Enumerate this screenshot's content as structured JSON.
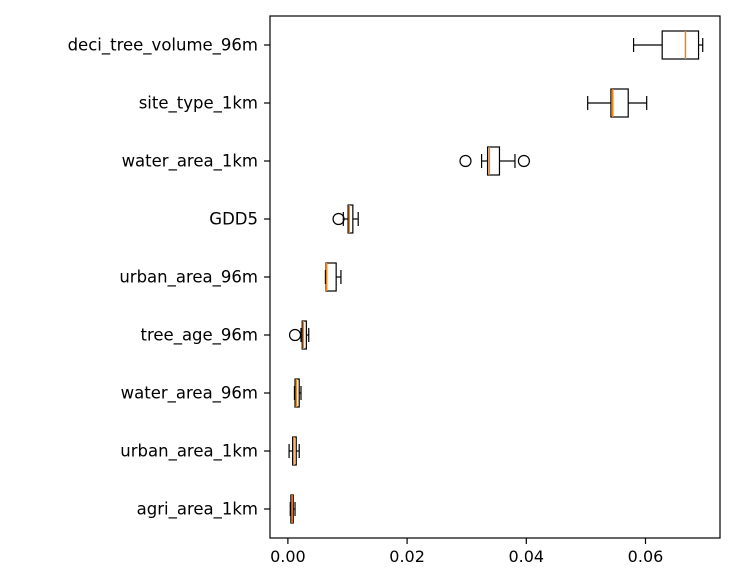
{
  "chart_data": {
    "type": "boxplot",
    "orientation": "horizontal",
    "title": "",
    "xlabel": "",
    "ylabel": "",
    "xlim": [
      -0.003,
      0.0725
    ],
    "x_ticks": [
      0.0,
      0.02,
      0.04,
      0.06
    ],
    "x_tick_labels": [
      "0.00",
      "0.02",
      "0.04",
      "0.06"
    ],
    "grid": false,
    "box_color": "#000000",
    "median_color": "#ff7f0e",
    "categories": [
      "deci_tree_volume_96m",
      "site_type_1km",
      "water_area_1km",
      "GDD5",
      "urban_area_96m",
      "tree_age_96m",
      "water_area_96m",
      "urban_area_1km",
      "agri_area_1km"
    ],
    "boxes": [
      {
        "label": "deci_tree_volume_96m",
        "whisker_low": 0.058,
        "q1": 0.0628,
        "median": 0.0667,
        "q3": 0.0689,
        "whisker_high": 0.0696,
        "fliers": []
      },
      {
        "label": "site_type_1km",
        "whisker_low": 0.0503,
        "q1": 0.0542,
        "median": 0.0545,
        "q3": 0.0571,
        "whisker_high": 0.0602,
        "fliers": []
      },
      {
        "label": "water_area_1km",
        "whisker_low": 0.0325,
        "q1": 0.0335,
        "median": 0.0338,
        "q3": 0.0355,
        "whisker_high": 0.0381,
        "fliers": [
          0.0298,
          0.0396
        ]
      },
      {
        "label": "GDD5",
        "whisker_low": 0.0093,
        "q1": 0.0101,
        "median": 0.0103,
        "q3": 0.0109,
        "whisker_high": 0.0118,
        "fliers": [
          0.0085
        ]
      },
      {
        "label": "urban_area_96m",
        "whisker_low": 0.0063,
        "q1": 0.0064,
        "median": 0.0065,
        "q3": 0.0081,
        "whisker_high": 0.0089,
        "fliers": []
      },
      {
        "label": "tree_age_96m",
        "whisker_low": 0.0022,
        "q1": 0.0024,
        "median": 0.0026,
        "q3": 0.0031,
        "whisker_high": 0.0035,
        "fliers": [
          0.0012
        ]
      },
      {
        "label": "water_area_96m",
        "whisker_low": 0.0011,
        "q1": 0.0012,
        "median": 0.0014,
        "q3": 0.0019,
        "whisker_high": 0.0022,
        "fliers": []
      },
      {
        "label": "urban_area_1km",
        "whisker_low": 0.0002,
        "q1": 0.0008,
        "median": 0.001,
        "q3": 0.0014,
        "whisker_high": 0.0019,
        "fliers": []
      },
      {
        "label": "agri_area_1km",
        "whisker_low": 0.0004,
        "q1": 0.0005,
        "median": 0.0007,
        "q3": 0.0009,
        "whisker_high": 0.0012,
        "fliers": []
      }
    ]
  }
}
